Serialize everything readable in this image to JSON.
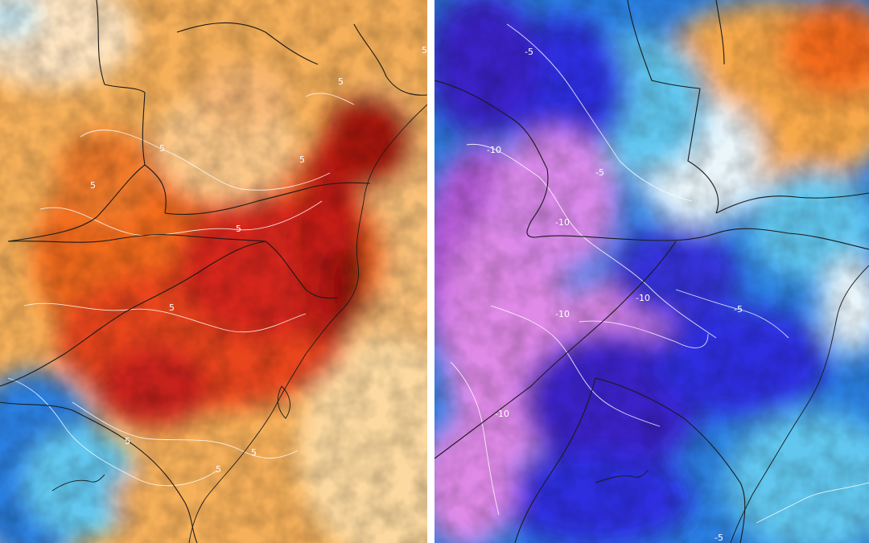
{
  "left_map": {
    "kind": "warm-anomaly",
    "contour_labels": [
      "5",
      "5",
      "5",
      "5",
      "5",
      "5",
      "5",
      "5",
      "5",
      "5"
    ]
  },
  "right_map": {
    "kind": "cold-anomaly",
    "contour_labels": [
      "-5",
      "-5",
      "-10",
      "-10",
      "-10",
      "-10",
      "-10",
      "-5",
      "-5"
    ]
  },
  "colors": {
    "warm_light": "#fde0b0",
    "warm_orange": "#f7a84a",
    "warm_deep_orange": "#f26b1f",
    "warm_red": "#d6261a",
    "warm_dark_red": "#8f0f10",
    "cool_white": "#eaf6fb",
    "cool_cyan": "#62c7ef",
    "cool_blue": "#2a7fe0",
    "cool_deep_blue": "#2d2fe0",
    "cool_indigo": "#3a22c8",
    "cool_violet": "#b55ad8",
    "cool_magenta": "#e08ae8",
    "divider": "#ffffff",
    "border": "#1a1a1a",
    "contour": "#ffffff"
  }
}
